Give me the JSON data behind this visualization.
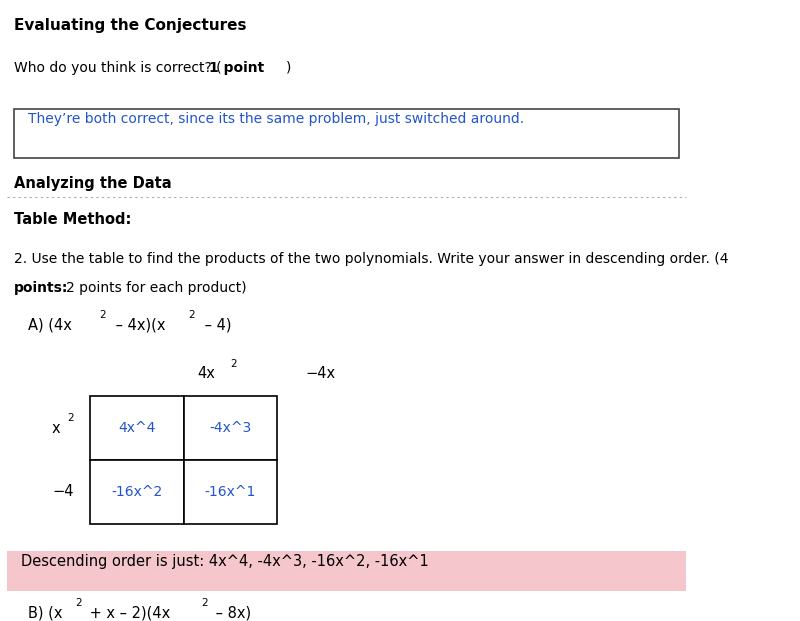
{
  "bg_color": "#ffffff",
  "title_text": "Evaluating the Conjectures",
  "answer_box_text": "They’re both correct, since its the same problem, just switched around.",
  "answer_box_color": "#2255cc",
  "cell_00": "4x^4",
  "cell_01": "-4x^3",
  "cell_10": "-16x^2",
  "cell_11": "-16x^1",
  "cell_color": "#2255cc",
  "desc_order_text": "Descending order is just: 4x^4, -4x^3, -16x^2, -16x^1",
  "desc_bg": "#f5c6cb"
}
